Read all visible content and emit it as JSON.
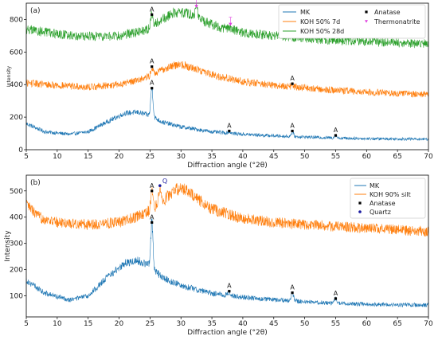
{
  "chart_data": [
    {
      "type": "line",
      "panel_label": "(a)",
      "xlabel": "Diffraction angle (°2θ)",
      "ylabel": "Intensity",
      "xlim": [
        5,
        70
      ],
      "ylim": [
        0,
        900
      ],
      "x_ticks": [
        5,
        10,
        15,
        20,
        25,
        30,
        35,
        40,
        45,
        50,
        55,
        60,
        65,
        70
      ],
      "y_ticks": [
        0,
        200,
        400,
        600,
        800
      ],
      "legend_position": "top-right",
      "series": [
        {
          "name": "MK",
          "color": "#1f77b4",
          "baseline_points": [
            [
              5,
              160
            ],
            [
              8,
              110
            ],
            [
              12,
              95
            ],
            [
              15,
              110
            ],
            [
              18,
              170
            ],
            [
              21,
              225
            ],
            [
              23,
              230
            ],
            [
              25,
              210
            ],
            [
              27,
              170
            ],
            [
              30,
              140
            ],
            [
              35,
              110
            ],
            [
              40,
              95
            ],
            [
              45,
              85
            ],
            [
              50,
              78
            ],
            [
              55,
              72
            ],
            [
              60,
              68
            ],
            [
              65,
              66
            ],
            [
              70,
              65
            ]
          ],
          "peaks": [
            [
              25.3,
              380
            ],
            [
              37.8,
              110
            ],
            [
              48.0,
              110
            ],
            [
              55.0,
              88
            ]
          ]
        },
        {
          "name": "KOH 50% 7d",
          "color": "#ff7f0e",
          "baseline_points": [
            [
              5,
              410
            ],
            [
              10,
              395
            ],
            [
              15,
              385
            ],
            [
              20,
              400
            ],
            [
              25,
              450
            ],
            [
              28,
              510
            ],
            [
              30,
              525
            ],
            [
              33,
              490
            ],
            [
              36,
              450
            ],
            [
              40,
              420
            ],
            [
              45,
              395
            ],
            [
              50,
              380
            ],
            [
              55,
              365
            ],
            [
              60,
              355
            ],
            [
              65,
              345
            ],
            [
              70,
              340
            ]
          ],
          "peaks": [
            [
              25.3,
              505
            ],
            [
              48.0,
              398
            ]
          ]
        },
        {
          "name": "KOH 50% 28d",
          "color": "#2ca02c",
          "baseline_points": [
            [
              5,
              740
            ],
            [
              10,
              710
            ],
            [
              15,
              695
            ],
            [
              20,
              700
            ],
            [
              24,
              730
            ],
            [
              27,
              800
            ],
            [
              29,
              845
            ],
            [
              31,
              840
            ],
            [
              33,
              800
            ],
            [
              36,
              755
            ],
            [
              40,
              720
            ],
            [
              45,
              700
            ],
            [
              50,
              685
            ],
            [
              55,
              672
            ],
            [
              60,
              665
            ],
            [
              65,
              655
            ],
            [
              70,
              650
            ]
          ],
          "peaks": [
            [
              25.3,
              830
            ],
            [
              32.5,
              880
            ],
            [
              38.0,
              745
            ]
          ]
        }
      ],
      "markers": [
        {
          "name": "Anatase",
          "symbol": "square",
          "label": "A",
          "color": "#000000",
          "points": [
            [
              25.3,
              830
            ],
            [
              25.3,
              510
            ],
            [
              25.3,
              378
            ],
            [
              48.0,
              405
            ],
            [
              37.8,
              115
            ],
            [
              48.0,
              115
            ],
            [
              55.0,
              88
            ]
          ]
        },
        {
          "name": "Thermonatrite",
          "symbol": "triangle-down",
          "label": "T",
          "color": "#e040e0",
          "points": [
            [
              32.5,
              880
            ],
            [
              38.0,
              770
            ]
          ]
        }
      ]
    },
    {
      "type": "line",
      "panel_label": "(b)",
      "xlabel": "Diffraction angle (°2θ)",
      "ylabel": "Intensity",
      "xlim": [
        5,
        70
      ],
      "ylim": [
        20,
        560
      ],
      "x_ticks": [
        5,
        10,
        15,
        20,
        25,
        30,
        35,
        40,
        45,
        50,
        55,
        60,
        65,
        70
      ],
      "y_ticks": [
        100,
        200,
        300,
        400,
        500
      ],
      "legend_position": "top-right",
      "series": [
        {
          "name": "MK",
          "color": "#1f77b4",
          "baseline_points": [
            [
              5,
              160
            ],
            [
              8,
              110
            ],
            [
              12,
              85
            ],
            [
              15,
              100
            ],
            [
              18,
              170
            ],
            [
              21,
              225
            ],
            [
              23,
              235
            ],
            [
              25,
              215
            ],
            [
              27,
              170
            ],
            [
              30,
              140
            ],
            [
              35,
              110
            ],
            [
              40,
              95
            ],
            [
              45,
              85
            ],
            [
              50,
              78
            ],
            [
              55,
              72
            ],
            [
              60,
              68
            ],
            [
              65,
              66
            ],
            [
              70,
              65
            ]
          ],
          "peaks": [
            [
              25.3,
              380
            ],
            [
              37.8,
              115
            ],
            [
              48.0,
              112
            ],
            [
              55.0,
              90
            ]
          ]
        },
        {
          "name": "KOH 90% silt",
          "color": "#ff7f0e",
          "baseline_points": [
            [
              5,
              450
            ],
            [
              7,
              400
            ],
            [
              10,
              380
            ],
            [
              15,
              372
            ],
            [
              20,
              380
            ],
            [
              24,
              410
            ],
            [
              27,
              460
            ],
            [
              29,
              505
            ],
            [
              30.5,
              510
            ],
            [
              32,
              480
            ],
            [
              35,
              430
            ],
            [
              40,
              395
            ],
            [
              45,
              380
            ],
            [
              50,
              372
            ],
            [
              55,
              365
            ],
            [
              60,
              358
            ],
            [
              65,
              352
            ],
            [
              70,
              345
            ]
          ],
          "peaks": [
            [
              25.3,
              495
            ],
            [
              26.6,
              520
            ]
          ]
        }
      ],
      "markers": [
        {
          "name": "Anatase",
          "symbol": "square",
          "label": "A",
          "color": "#000000",
          "points": [
            [
              25.3,
              500
            ],
            [
              25.3,
              380
            ],
            [
              37.8,
              118
            ],
            [
              48.0,
              112
            ],
            [
              55.0,
              90
            ]
          ]
        },
        {
          "name": "Quartz",
          "symbol": "circle",
          "label": "Q",
          "color": "#1a1aa0",
          "points": [
            [
              26.6,
              520
            ]
          ]
        }
      ]
    }
  ]
}
